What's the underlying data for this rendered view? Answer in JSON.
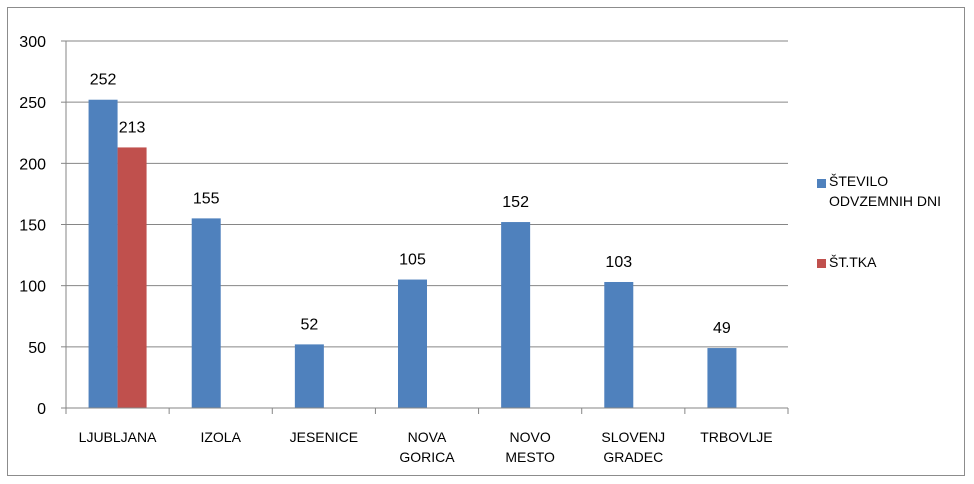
{
  "chart_data": {
    "type": "bar",
    "categories": [
      [
        "LJUBLJANA"
      ],
      [
        "IZOLA"
      ],
      [
        "JESENICE"
      ],
      [
        "NOVA",
        "GORICA"
      ],
      [
        "NOVO",
        "MESTO"
      ],
      [
        "SLOVENJ",
        "GRADEC"
      ],
      [
        "TRBOVLJE"
      ]
    ],
    "series": [
      {
        "name_lines": [
          "ŠTEVILO",
          "ODVZEMNIH DNI"
        ],
        "color": "#4f81bd",
        "values": [
          252,
          155,
          52,
          105,
          152,
          103,
          49
        ]
      },
      {
        "name_lines": [
          "ŠT.TKA"
        ],
        "color": "#c0504d",
        "values": [
          213,
          null,
          null,
          null,
          null,
          null,
          null
        ]
      }
    ],
    "yticks": [
      "0",
      "50",
      "100",
      "150",
      "200",
      "250",
      "300"
    ],
    "ylim": [
      0,
      300
    ],
    "grid": true,
    "legend": "right"
  }
}
